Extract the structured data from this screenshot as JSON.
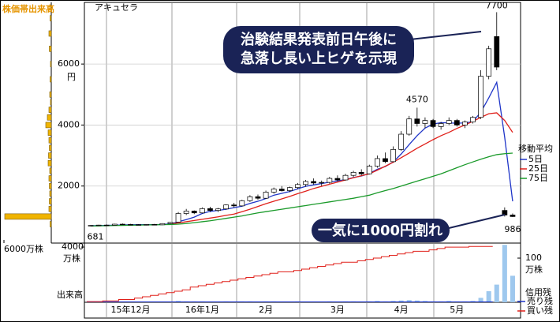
{
  "chart_data": {
    "type": "candlestick",
    "title": "アキュセラ",
    "categories": [
      null,
      null,
      null,
      null,
      null,
      "15年12月",
      null,
      null,
      null,
      null,
      null,
      null,
      null,
      null,
      "16年1月",
      null,
      null,
      null,
      null,
      null,
      null,
      null,
      "2月",
      null,
      null,
      null,
      null,
      null,
      null,
      null,
      null,
      "3月",
      null,
      null,
      null,
      null,
      null,
      null,
      null,
      "4月",
      null,
      null,
      null,
      null,
      null,
      null,
      "5月",
      null,
      null,
      null,
      null,
      null,
      null,
      null
    ],
    "ohlc": [
      [
        700,
        720,
        681,
        710
      ],
      [
        710,
        730,
        700,
        720
      ],
      [
        720,
        740,
        705,
        715
      ],
      [
        715,
        760,
        710,
        750
      ],
      [
        750,
        770,
        730,
        740
      ],
      [
        740,
        760,
        720,
        735
      ],
      [
        735,
        750,
        715,
        725
      ],
      [
        725,
        745,
        710,
        740
      ],
      [
        740,
        760,
        725,
        730
      ],
      [
        730,
        780,
        720,
        770
      ],
      [
        770,
        820,
        760,
        810
      ],
      [
        820,
        1150,
        810,
        1100
      ],
      [
        1100,
        1250,
        1050,
        1180
      ],
      [
        1180,
        1200,
        1080,
        1120
      ],
      [
        1120,
        1300,
        1100,
        1260
      ],
      [
        1260,
        1320,
        1150,
        1200
      ],
      [
        1200,
        1280,
        1150,
        1250
      ],
      [
        1250,
        1400,
        1220,
        1380
      ],
      [
        1380,
        1450,
        1300,
        1350
      ],
      [
        1350,
        1550,
        1330,
        1520
      ],
      [
        1520,
        1700,
        1480,
        1650
      ],
      [
        1650,
        1720,
        1550,
        1600
      ],
      [
        1600,
        1850,
        1580,
        1800
      ],
      [
        1800,
        1950,
        1750,
        1900
      ],
      [
        1900,
        2000,
        1820,
        1850
      ],
      [
        1850,
        1980,
        1800,
        1950
      ],
      [
        1950,
        2100,
        1900,
        2050
      ],
      [
        2050,
        2200,
        1980,
        2150
      ],
      [
        2150,
        2250,
        2050,
        2100
      ],
      [
        2100,
        2180,
        2000,
        2120
      ],
      [
        2120,
        2300,
        2080,
        2250
      ],
      [
        2250,
        2350,
        2150,
        2200
      ],
      [
        2200,
        2400,
        2180,
        2350
      ],
      [
        2350,
        2500,
        2300,
        2450
      ],
      [
        2450,
        2550,
        2350,
        2400
      ],
      [
        2400,
        2700,
        2380,
        2650
      ],
      [
        2650,
        3000,
        2600,
        2900
      ],
      [
        2900,
        3100,
        2750,
        2800
      ],
      [
        2800,
        3300,
        2780,
        3200
      ],
      [
        3200,
        3800,
        3150,
        3700
      ],
      [
        3700,
        4300,
        3650,
        4200
      ],
      [
        4200,
        4570,
        3950,
        4050
      ],
      [
        4050,
        4250,
        3900,
        4150
      ],
      [
        4150,
        4200,
        3900,
        3950
      ],
      [
        3950,
        4100,
        3850,
        4050
      ],
      [
        4050,
        4250,
        4000,
        4150
      ],
      [
        4150,
        4200,
        3950,
        4000
      ],
      [
        4000,
        4150,
        3900,
        4100
      ],
      [
        4100,
        4300,
        4050,
        4250
      ],
      [
        4250,
        5800,
        4200,
        5600
      ],
      [
        5600,
        6600,
        5500,
        6500
      ],
      [
        6900,
        7700,
        5800,
        5900
      ],
      [
        1200,
        1300,
        1000,
        1050
      ],
      [
        1050,
        1100,
        986,
        1000
      ]
    ],
    "up_color": "#ffffff",
    "down_color": "#000000",
    "ylim": [
      130,
      7970
    ],
    "yticks": [
      2000,
      4000,
      6000
    ],
    "y_unit": "円",
    "moving_average": {
      "title": "移動平均",
      "series": [
        {
          "name": "5日",
          "color": "#1f35c8",
          "values": [
            700,
            705,
            710,
            715,
            725,
            730,
            735,
            735,
            735,
            740,
            760,
            830,
            900,
            980,
            1100,
            1170,
            1200,
            1240,
            1290,
            1340,
            1430,
            1500,
            1590,
            1700,
            1760,
            1820,
            1910,
            1990,
            2040,
            2080,
            2130,
            2170,
            2210,
            2280,
            2330,
            2410,
            2550,
            2640,
            2790,
            3050,
            3360,
            3650,
            3900,
            4030,
            4080,
            4070,
            4060,
            4070,
            4110,
            4420,
            4890,
            5400,
            3600,
            1500
          ]
        },
        {
          "name": "25日",
          "color": "#e0201a",
          "values": [
            null,
            null,
            null,
            null,
            null,
            null,
            null,
            null,
            null,
            null,
            760,
            790,
            830,
            870,
            910,
            950,
            990,
            1040,
            1080,
            1160,
            1240,
            1330,
            1420,
            1500,
            1580,
            1660,
            1750,
            1830,
            1920,
            1990,
            2060,
            2130,
            2200,
            2270,
            2340,
            2400,
            2520,
            2650,
            2780,
            2930,
            3080,
            3240,
            3380,
            3520,
            3650,
            3760,
            3890,
            4000,
            4120,
            4250,
            4370,
            4400,
            4150,
            3760
          ]
        },
        {
          "name": "75日",
          "color": "#1a9a2a",
          "values": [
            690,
            695,
            700,
            705,
            710,
            715,
            720,
            725,
            730,
            735,
            740,
            750,
            770,
            800,
            830,
            860,
            900,
            940,
            980,
            1020,
            1070,
            1120,
            1160,
            1200,
            1240,
            1280,
            1320,
            1360,
            1400,
            1440,
            1480,
            1520,
            1560,
            1600,
            1650,
            1700,
            1780,
            1850,
            1920,
            2000,
            2080,
            2160,
            2240,
            2320,
            2400,
            2500,
            2600,
            2700,
            2790,
            2880,
            2960,
            3030,
            3060,
            3080
          ]
        }
      ]
    },
    "callouts": [
      [
        "治験結果発表前日午後に",
        "急落し長い上ヒゲを示現"
      ],
      [
        "一気に1000円割れ"
      ]
    ],
    "volume_by_price": {
      "title": "株価帯出来高",
      "color": "#f0b400",
      "levels": [
        750,
        1000,
        1250,
        1500,
        1750,
        2000,
        2250,
        2500,
        2750,
        3000,
        3250,
        3500,
        3750,
        4000,
        4250,
        4500,
        4750,
        5000,
        5500,
        6000,
        6500,
        7000,
        7500
      ],
      "volumes": [
        150,
        5900,
        300,
        250,
        200,
        250,
        300,
        200,
        400,
        350,
        250,
        300,
        400,
        700,
        500,
        300,
        100,
        200,
        150,
        100,
        250,
        300,
        150
      ],
      "xlim": [
        0,
        6000
      ],
      "xticks": [
        {
          "value": 6000,
          "label": "6000万株"
        }
      ]
    },
    "volume": {
      "label": "出来高",
      "color": "#9ec8ee",
      "values": [
        1,
        1,
        1,
        1,
        1,
        1,
        1,
        1,
        1,
        1,
        1,
        3,
        2,
        2,
        2,
        1,
        1,
        2,
        1,
        2,
        2,
        1,
        2,
        2,
        1,
        1,
        2,
        1,
        1,
        1,
        2,
        1,
        2,
        2,
        1,
        2,
        3,
        2,
        3,
        4,
        5,
        4,
        3,
        2,
        2,
        3,
        2,
        2,
        3,
        10,
        25,
        40,
        130,
        60
      ],
      "ylim": [
        0,
        134
      ],
      "yticks": [
        100
      ],
      "unit": "万株"
    },
    "margin": {
      "title": "信用残",
      "ylim": [
        0,
        4290
      ],
      "yticks": [
        4000
      ],
      "unit": "万株",
      "series": [
        {
          "name": "売り残",
          "color": "#1f35c8",
          "values": [
            30,
            30,
            30,
            30,
            30,
            30,
            30,
            30,
            30,
            30,
            30,
            30,
            30,
            30,
            30,
            30,
            30,
            30,
            30,
            30,
            30,
            30,
            30,
            30,
            30,
            30,
            30,
            30,
            30,
            30,
            30,
            30,
            30,
            30,
            30,
            30,
            30,
            30,
            30,
            30,
            30,
            30,
            30,
            30,
            30,
            30,
            30,
            30,
            30,
            30,
            30,
            null,
            null,
            null
          ]
        },
        {
          "name": "買い残",
          "color": "#e0201a",
          "values": [
            50,
            50,
            100,
            100,
            200,
            200,
            300,
            400,
            500,
            600,
            700,
            800,
            900,
            1100,
            1200,
            1300,
            1400,
            1500,
            1600,
            1700,
            1800,
            1900,
            2000,
            2100,
            2200,
            2200,
            2300,
            2400,
            2500,
            2600,
            2700,
            2800,
            2900,
            2900,
            3000,
            3100,
            3200,
            3300,
            3400,
            3500,
            3600,
            3700,
            3700,
            3800,
            3900,
            4000,
            4000,
            4000,
            4050,
            4050,
            4050,
            null,
            null,
            null
          ]
        }
      ]
    }
  }
}
